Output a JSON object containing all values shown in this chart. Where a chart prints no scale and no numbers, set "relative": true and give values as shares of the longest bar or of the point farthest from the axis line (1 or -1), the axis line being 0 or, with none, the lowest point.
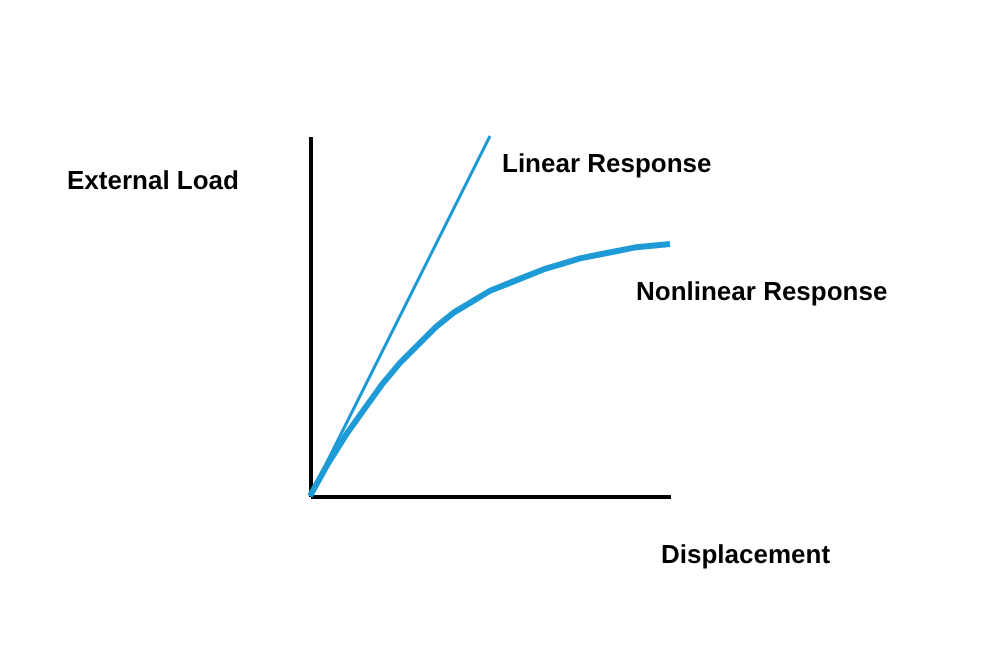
{
  "chart_data": {
    "type": "line",
    "relative": true,
    "xlabel": "Displacement",
    "ylabel": "External Load",
    "legend": false,
    "grid": false,
    "categories": [
      null,
      null,
      null,
      null,
      null,
      null,
      null,
      null,
      null,
      null,
      null,
      null,
      null,
      null,
      null,
      null,
      null,
      null,
      null,
      null,
      null
    ],
    "series": [
      {
        "name": "Linear Response",
        "color": "#1e9ad6",
        "values": [
          0,
          0.1,
          0.2,
          0.3,
          0.4,
          0.5,
          0.6,
          0.7,
          0.8,
          0.9,
          1.0,
          null,
          null,
          null,
          null,
          null,
          null,
          null,
          null,
          null,
          null
        ]
      },
      {
        "name": "Nonlinear Response",
        "color": "#1e9ad6",
        "values": [
          0,
          0.09,
          0.17,
          0.24,
          0.31,
          0.37,
          0.42,
          0.47,
          0.51,
          0.54,
          0.57,
          0.59,
          0.61,
          0.63,
          0.645,
          0.66,
          0.67,
          0.68,
          0.69,
          0.695,
          0.7
        ]
      }
    ]
  }
}
